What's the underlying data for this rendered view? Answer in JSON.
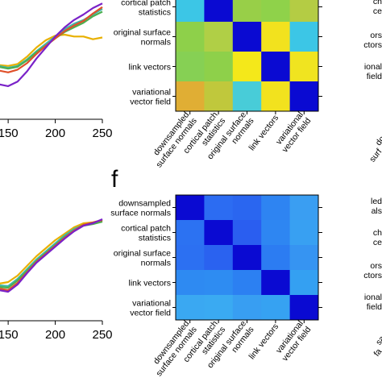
{
  "panel_letter": "f",
  "chart_data": [
    {
      "type": "line",
      "panel": "top-left",
      "x_ticks": [
        "150",
        "200",
        "250"
      ],
      "x": [
        90,
        100,
        110,
        120,
        130,
        140,
        150,
        160,
        170,
        180,
        190,
        200,
        210,
        220,
        230,
        240,
        250
      ],
      "series": [
        {
          "color": "#e8b000",
          "values": [
            0.99,
            0.8,
            0.6,
            0.45,
            0.36,
            0.31,
            0.3,
            0.32,
            0.4,
            0.5,
            0.58,
            0.63,
            0.64,
            0.62,
            0.62,
            0.59,
            0.61
          ]
        },
        {
          "color": "#3fb8a8",
          "values": [
            0.72,
            0.62,
            0.52,
            0.42,
            0.34,
            0.3,
            0.28,
            0.3,
            0.37,
            0.46,
            0.54,
            0.62,
            0.7,
            0.76,
            0.8,
            0.86,
            0.92
          ]
        },
        {
          "color": "#4caf50",
          "values": [
            0.68,
            0.6,
            0.5,
            0.41,
            0.33,
            0.29,
            0.27,
            0.29,
            0.36,
            0.45,
            0.52,
            0.6,
            0.67,
            0.72,
            0.77,
            0.84,
            0.89
          ]
        },
        {
          "color": "#e0502a",
          "values": [
            0.62,
            0.54,
            0.45,
            0.36,
            0.29,
            0.25,
            0.23,
            0.26,
            0.33,
            0.43,
            0.52,
            0.6,
            0.68,
            0.74,
            0.79,
            0.87,
            0.94
          ]
        },
        {
          "color": "#7a22c8",
          "values": [
            0.6,
            0.5,
            0.38,
            0.26,
            0.16,
            0.1,
            0.08,
            0.13,
            0.24,
            0.38,
            0.5,
            0.62,
            0.72,
            0.8,
            0.86,
            0.93,
            0.98
          ]
        }
      ]
    },
    {
      "type": "heatmap",
      "panel": "top-middle",
      "rows": [
        "cortical patch\nstatistics",
        "original surface\nnormals",
        "link vectors",
        "variational\nvector field"
      ],
      "columns": [
        "downsampled\nsurface normals",
        "cortical patch\nstatistics",
        "original surface\nnormals",
        "link vectors",
        "variational\nvector field"
      ],
      "cells": [
        [
          "#3cc6e6",
          "#0a0ad2",
          "#98cf48",
          "#8fd24a",
          "#b4cc44"
        ],
        [
          "#8ed04a",
          "#b0cf46",
          "#0a0ad2",
          "#f2e21e",
          "#3cc6e6"
        ],
        [
          "#86d054",
          "#8ed04a",
          "#f4e81a",
          "#0a0ad2",
          "#f0e420"
        ],
        [
          "#e0ae34",
          "#c0c83c",
          "#48ccd8",
          "#f2e21e",
          "#0a0ad2"
        ]
      ]
    },
    {
      "type": "line",
      "panel": "bottom-left",
      "x_ticks": [
        "150",
        "200",
        "250"
      ],
      "x": [
        90,
        100,
        110,
        120,
        130,
        140,
        150,
        160,
        170,
        180,
        190,
        200,
        210,
        220,
        230,
        240,
        250
      ],
      "series": [
        {
          "color": "#e8b000",
          "values": [
            0.98,
            0.82,
            0.66,
            0.48,
            0.3,
            0.2,
            0.22,
            0.3,
            0.42,
            0.54,
            0.64,
            0.74,
            0.82,
            0.9,
            0.95,
            0.96,
            0.98
          ]
        },
        {
          "color": "#3fb8a8",
          "values": [
            0.95,
            0.8,
            0.64,
            0.46,
            0.28,
            0.18,
            0.17,
            0.26,
            0.38,
            0.5,
            0.6,
            0.7,
            0.8,
            0.88,
            0.93,
            0.95,
            0.99
          ]
        },
        {
          "color": "#4caf50",
          "values": [
            0.94,
            0.79,
            0.63,
            0.45,
            0.27,
            0.16,
            0.15,
            0.24,
            0.36,
            0.48,
            0.58,
            0.68,
            0.78,
            0.86,
            0.92,
            0.94,
            0.97
          ]
        },
        {
          "color": "#e0502a",
          "values": [
            0.96,
            0.81,
            0.64,
            0.46,
            0.27,
            0.14,
            0.12,
            0.21,
            0.34,
            0.47,
            0.57,
            0.67,
            0.77,
            0.86,
            0.93,
            0.96,
            0.99
          ]
        },
        {
          "color": "#7a22c8",
          "values": [
            0.97,
            0.81,
            0.63,
            0.44,
            0.25,
            0.12,
            0.1,
            0.19,
            0.33,
            0.46,
            0.56,
            0.66,
            0.76,
            0.85,
            0.92,
            0.95,
            1.0
          ]
        }
      ]
    },
    {
      "type": "heatmap",
      "panel": "bottom-middle",
      "rows": [
        "downsampled\nsurface normals",
        "cortical patch\nstatistics",
        "original surface\nnormals",
        "link vectors",
        "variational\nvector field"
      ],
      "columns": [
        "downsampled\nsurface normals",
        "cortical patch\nstatistics",
        "original surface\nnormals",
        "link vectors",
        "variational\nvector field"
      ],
      "cells": [
        [
          "#0a0ad2",
          "#2c6cf2",
          "#2a66f0",
          "#2e84f2",
          "#3a9ef2"
        ],
        [
          "#2c72f2",
          "#0a0ad2",
          "#2a5ef0",
          "#2e86f2",
          "#38a0f2"
        ],
        [
          "#2c70f2",
          "#2a62f0",
          "#0a0ad2",
          "#2c7cf2",
          "#3694f2"
        ],
        [
          "#2e8af2",
          "#2e8cf2",
          "#2c80f2",
          "#0a0ad2",
          "#34a0f2"
        ],
        [
          "#3aa8f2",
          "#3aaaf2",
          "#389ef2",
          "#36a2f2",
          "#0a0ad2"
        ]
      ]
    },
    {
      "type": "heatmap",
      "panel": "top-right-partial",
      "row_labels": [
        "ch",
        "ce",
        "ors",
        "ctors",
        "ional",
        "field"
      ],
      "col_labels": [
        "do",
        "surf"
      ]
    },
    {
      "type": "heatmap",
      "panel": "bottom-right-partial",
      "row_labels": [
        "led",
        "als",
        "ch",
        "ce",
        "ors",
        "ctors",
        "ional",
        "field"
      ],
      "col_labels": [
        "sa",
        "fa"
      ]
    }
  ]
}
